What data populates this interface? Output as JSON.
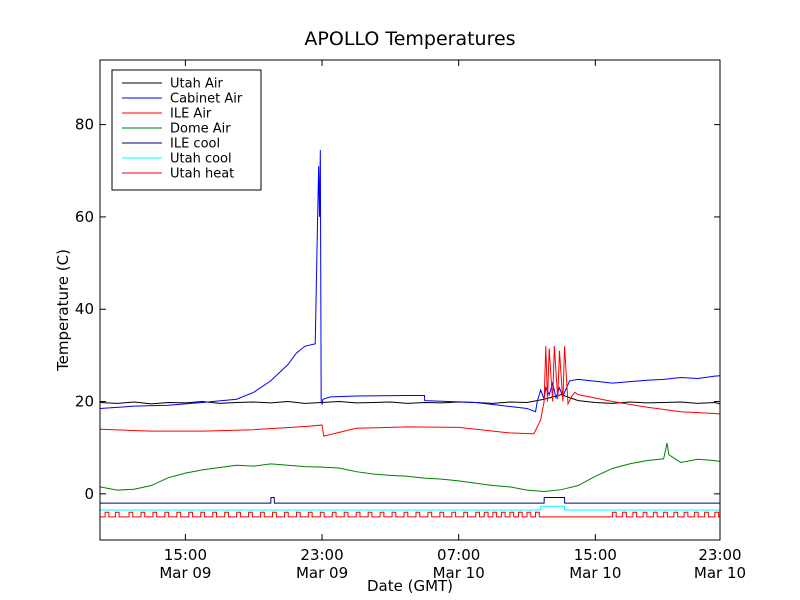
{
  "chart_data": {
    "type": "line",
    "title": "APOLLO Temperatures",
    "xlabel": "Date (GMT)",
    "ylabel": "Temperature (C)",
    "xlim": [
      10.0,
      46.3
    ],
    "ylim": [
      -10,
      94
    ],
    "legend_position": "top-left",
    "grid": false,
    "x_ticks": [
      {
        "x": 15,
        "line1": "15:00",
        "line2": "Mar 09"
      },
      {
        "x": 23,
        "line1": "23:00",
        "line2": "Mar 09"
      },
      {
        "x": 31,
        "line1": "07:00",
        "line2": "Mar 10"
      },
      {
        "x": 39,
        "line1": "15:00",
        "line2": "Mar 10"
      },
      {
        "x": 47,
        "line1": "23:00",
        "line2": "Mar 10"
      }
    ],
    "y_ticks": [
      {
        "y": 0,
        "label": "0"
      },
      {
        "y": 20,
        "label": "20"
      },
      {
        "y": 40,
        "label": "40"
      },
      {
        "y": 60,
        "label": "60"
      },
      {
        "y": 80,
        "label": "80"
      }
    ],
    "series": [
      {
        "name": "Utah Air",
        "color": "#000000",
        "x": [
          10,
          11,
          12,
          13,
          14,
          15,
          16,
          17,
          18,
          19,
          20,
          21,
          22,
          23,
          24,
          25,
          26,
          27,
          28,
          29,
          30,
          31,
          32,
          33,
          34,
          35,
          36,
          37,
          38,
          39,
          40,
          41,
          42,
          43,
          44,
          45,
          46,
          46.3
        ],
        "y": [
          19.8,
          19.6,
          19.9,
          19.5,
          19.8,
          19.7,
          20.0,
          19.6,
          19.8,
          19.9,
          19.7,
          20.0,
          19.6,
          19.8,
          20.0,
          19.7,
          19.8,
          19.9,
          19.6,
          19.8,
          19.7,
          19.9,
          19.8,
          19.6,
          19.9,
          19.8,
          20.5,
          21.5,
          20.2,
          19.8,
          19.6,
          19.9,
          19.7,
          19.8,
          19.9,
          19.6,
          19.8,
          19.5
        ]
      },
      {
        "name": "Cabinet Air",
        "color": "#0000ff",
        "x": [
          10,
          12,
          14,
          16,
          18,
          19,
          20,
          21,
          21.5,
          22,
          22.6,
          22.8,
          22.85,
          22.9,
          22.95,
          23.0,
          23.05,
          23.5,
          25,
          28,
          29,
          29.01,
          32,
          35,
          35.5,
          35.6,
          35.8,
          36,
          36.1,
          36.3,
          36.5,
          36.7,
          36.9,
          37.1,
          37.2,
          37.5,
          38,
          40,
          42,
          43,
          44,
          45,
          46,
          46.3
        ],
        "y": [
          18.5,
          19.0,
          19.2,
          19.8,
          20.5,
          22,
          24.5,
          28,
          30.5,
          32.0,
          32.5,
          71.0,
          60.0,
          74.5,
          20.0,
          19.5,
          20.5,
          21.0,
          21.2,
          21.3,
          21.3,
          20.2,
          19.8,
          18.5,
          17.8,
          20.0,
          22.5,
          20.5,
          23.0,
          21.5,
          24.0,
          20.8,
          23.0,
          21.0,
          22.0,
          24.5,
          24.8,
          24.0,
          24.6,
          24.8,
          25.2,
          25.0,
          25.5,
          25.6
        ]
      },
      {
        "name": "ILE Air",
        "color": "#ff0000",
        "x": [
          10,
          13,
          16,
          19,
          22,
          23,
          23.1,
          25,
          28,
          31,
          34,
          35.4,
          35.8,
          36,
          36.1,
          36.2,
          36.3,
          36.5,
          36.6,
          36.8,
          36.9,
          37.1,
          37.2,
          37.4,
          37.6,
          37.8,
          38,
          40,
          42,
          44,
          46,
          46.3
        ],
        "y": [
          14.0,
          13.6,
          13.6,
          13.9,
          14.6,
          14.9,
          12.5,
          14.2,
          14.5,
          14.4,
          13.2,
          13.0,
          16.0,
          20.0,
          32.0,
          20.0,
          31.5,
          20.0,
          32.0,
          20.5,
          31.0,
          20.0,
          32.0,
          19.5,
          21.0,
          22.0,
          21.5,
          20.0,
          18.8,
          17.8,
          17.4,
          17.3
        ]
      },
      {
        "name": "Dome Air",
        "color": "#008000",
        "x": [
          10,
          11,
          12,
          13,
          14,
          15,
          16,
          17,
          18,
          19,
          20,
          21,
          22,
          23,
          24,
          25,
          26,
          27,
          28,
          29,
          30,
          31,
          32,
          33,
          34,
          35,
          36,
          37,
          38,
          39,
          40,
          41,
          42,
          43,
          43.2,
          43.3,
          43.5,
          44,
          45,
          46,
          46.3
        ],
        "y": [
          1.5,
          0.8,
          1.0,
          1.8,
          3.5,
          4.5,
          5.2,
          5.7,
          6.2,
          6.0,
          6.5,
          6.2,
          5.9,
          5.8,
          5.6,
          4.8,
          4.3,
          4.0,
          3.8,
          3.4,
          3.2,
          2.8,
          2.3,
          1.8,
          1.5,
          0.8,
          0.5,
          0.9,
          1.8,
          3.8,
          5.5,
          6.5,
          7.2,
          7.6,
          11.0,
          8.5,
          8.0,
          6.8,
          7.5,
          7.2,
          7.0
        ]
      },
      {
        "name": "ILE cool",
        "color": "#000080",
        "x": [
          10,
          20,
          20.01,
          20.2,
          20.21,
          36,
          36.01,
          37.2,
          37.21,
          46.3
        ],
        "y": [
          -2.0,
          -2.0,
          -0.8,
          -0.8,
          -2.0,
          -2.0,
          -0.8,
          -0.8,
          -2.0,
          -2.0
        ]
      },
      {
        "name": "Utah cool",
        "color": "#00ffff",
        "x": [
          10,
          35.8,
          35.81,
          37.2,
          37.21,
          46.3
        ],
        "y": [
          -3.5,
          -3.5,
          -2.7,
          -2.7,
          -3.5,
          -3.5
        ]
      },
      {
        "name": "Utah heat",
        "color": "#ff0000",
        "x": [
          10,
          46.3
        ],
        "y": [
          -5.0,
          -5.0
        ],
        "pulses": [
          10.3,
          10.9,
          11.7,
          12.4,
          13.1,
          13.8,
          14.5,
          15.2,
          15.9,
          16.6,
          17.3,
          18.0,
          18.7,
          19.4,
          20.1,
          20.8,
          21.5,
          22.2,
          22.9,
          23.6,
          24.3,
          25.0,
          25.7,
          26.4,
          27.1,
          27.8,
          28.5,
          29.2,
          29.9,
          30.6,
          31.3,
          32.0,
          32.5,
          33.0,
          33.5,
          34.0,
          34.5,
          35.0,
          35.5,
          40.0,
          40.6,
          41.2,
          41.8,
          42.4,
          43.0,
          43.6,
          44.2,
          44.8,
          45.4,
          46.0
        ],
        "pulse_height": 1.0
      }
    ]
  }
}
